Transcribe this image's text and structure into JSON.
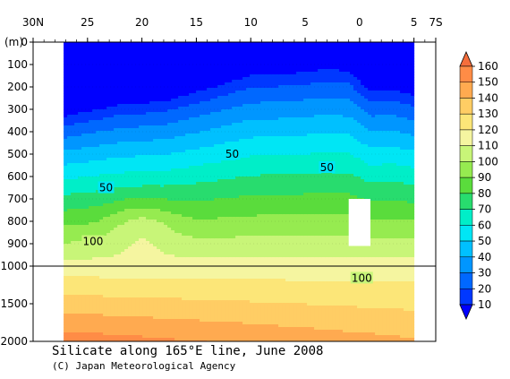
{
  "chart_data": {
    "type": "heatmap",
    "title": "Silicate along 165°E line, June 2008",
    "subtitle": "(C) Japan Meteorological Agency",
    "ylabel": "(m)",
    "x_ticks": [
      "30N",
      "25",
      "20",
      "15",
      "10",
      "5",
      "0",
      "5",
      "7S"
    ],
    "x_tick_values": [
      30,
      25,
      20,
      15,
      10,
      5,
      0,
      -5,
      -7
    ],
    "x_range": [
      30,
      -7
    ],
    "data_x_range": [
      27.2,
      -5.0
    ],
    "y_ticks_upper": [
      "0",
      "100",
      "200",
      "300",
      "400",
      "500",
      "600",
      "700",
      "800",
      "900",
      "1000"
    ],
    "y_ticks_lower": [
      "1500",
      "2000"
    ],
    "colorbar_ticks": [
      "10",
      "20",
      "30",
      "40",
      "50",
      "60",
      "70",
      "80",
      "90",
      "100",
      "110",
      "120",
      "130",
      "140",
      "150",
      "160"
    ],
    "contour_labels": [
      {
        "text": "50",
        "lat": 11.7,
        "depth": 500
      },
      {
        "text": "50",
        "lat": 3.0,
        "depth": 560
      },
      {
        "text": "50",
        "lat": 23.3,
        "depth": 650
      },
      {
        "text": "100",
        "lat": 24.5,
        "depth": 890
      },
      {
        "text": "100",
        "lat": -0.2,
        "depth": 1160
      }
    ],
    "missing_region": {
      "lat": [
        1.0,
        -1.0
      ],
      "depth": [
        700,
        910
      ]
    }
  }
}
